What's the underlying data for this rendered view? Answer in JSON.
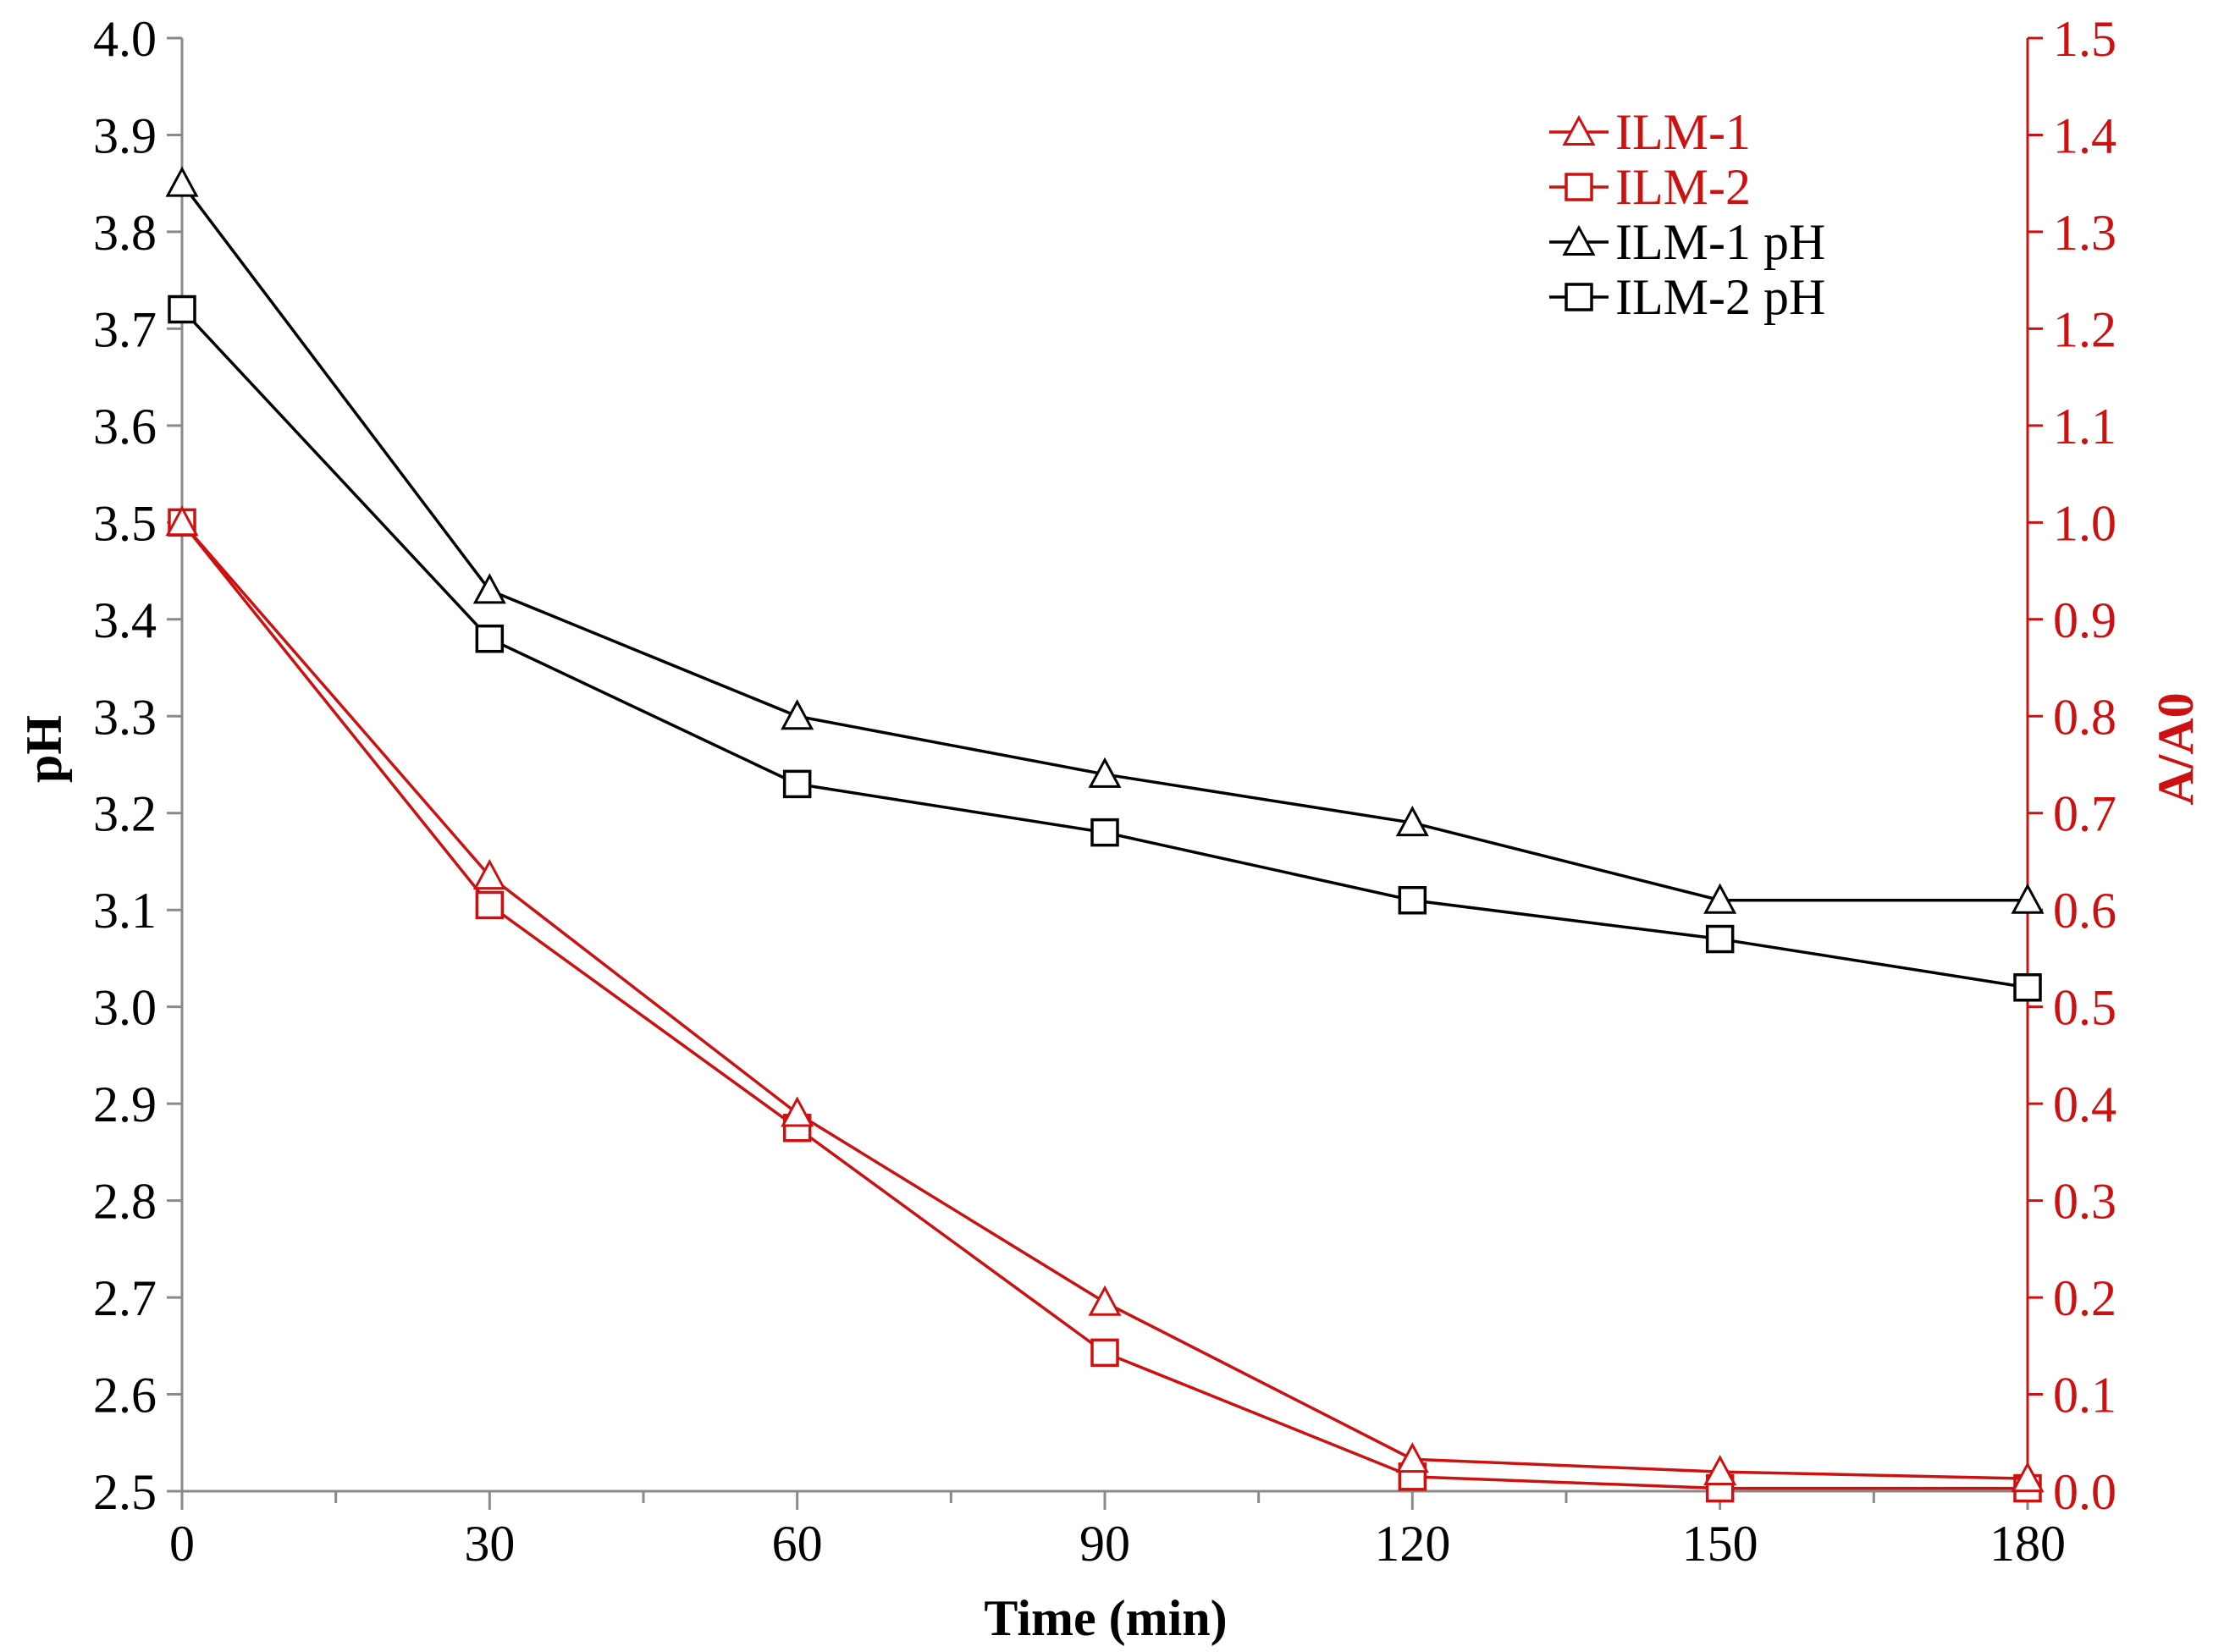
{
  "chart_data": {
    "type": "line",
    "title": "",
    "xlabel": "Time (min)",
    "ylabel_left": "pH",
    "ylabel_right": "A/A0",
    "x": [
      0,
      30,
      60,
      90,
      120,
      150,
      180
    ],
    "xlim": [
      0,
      180
    ],
    "ylim_left": [
      2.5,
      4.0
    ],
    "ylim_right": [
      0.0,
      1.5
    ],
    "x_ticks": [
      "0",
      "30",
      "60",
      "90",
      "120",
      "150",
      "180"
    ],
    "y_left_ticks": [
      "2.5",
      "2.6",
      "2.7",
      "2.8",
      "2.9",
      "3.0",
      "3.1",
      "3.2",
      "3.3",
      "3.4",
      "3.5",
      "3.6",
      "3.7",
      "3.8",
      "3.9",
      "4.0"
    ],
    "y_right_ticks": [
      "0.0",
      "0.1",
      "0.2",
      "0.3",
      "0.4",
      "0.5",
      "0.6",
      "0.7",
      "0.8",
      "0.9",
      "1.0",
      "1.1",
      "1.2",
      "1.3",
      "1.4",
      "1.5"
    ],
    "grid": false,
    "legend_position": "top-right",
    "series": [
      {
        "name": "ILM-1",
        "axis": "right",
        "marker": "triangle",
        "color": "#cc1111",
        "values": [
          1.0,
          0.635,
          0.39,
          0.195,
          0.033,
          0.02,
          0.013
        ]
      },
      {
        "name": "ILM-2",
        "axis": "right",
        "marker": "square",
        "color": "#cc1111",
        "values": [
          1.0,
          0.605,
          0.375,
          0.143,
          0.015,
          0.003,
          0.003
        ]
      },
      {
        "name": "ILM-1 pH",
        "axis": "left",
        "marker": "triangle",
        "color": "#000000",
        "values": [
          3.85,
          3.43,
          3.3,
          3.24,
          3.19,
          3.11,
          3.11
        ]
      },
      {
        "name": "ILM-2 pH",
        "axis": "left",
        "marker": "square",
        "color": "#000000",
        "values": [
          3.72,
          3.38,
          3.23,
          3.18,
          3.11,
          3.07,
          3.02
        ]
      }
    ]
  },
  "colors": {
    "left_axis": "#000000",
    "right_axis": "#cc1111"
  }
}
